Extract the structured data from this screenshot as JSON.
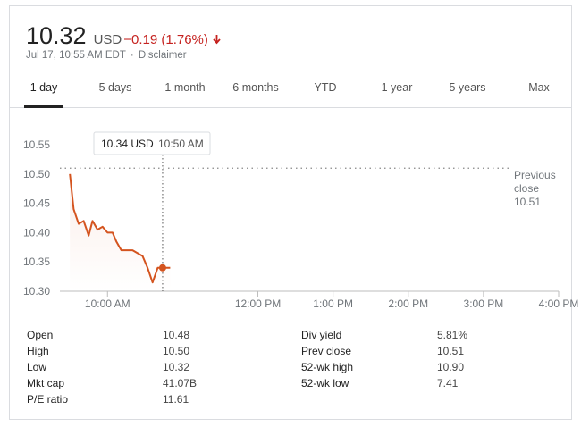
{
  "quote": {
    "price": "10.32",
    "currency": "USD",
    "change": "−0.19 (1.76%)",
    "timestamp": "Jul 17, 10:55 AM EDT",
    "separator": "·",
    "disclaimer": "Disclaimer",
    "change_color": "#c5221f"
  },
  "tabs": [
    {
      "label": "1 day",
      "active": true
    },
    {
      "label": "5 days",
      "active": false
    },
    {
      "label": "1 month",
      "active": false
    },
    {
      "label": "6 months",
      "active": false
    },
    {
      "label": "YTD",
      "active": false
    },
    {
      "label": "1 year",
      "active": false
    },
    {
      "label": "5 years",
      "active": false
    },
    {
      "label": "Max",
      "active": false
    }
  ],
  "chart_data": {
    "type": "line",
    "x_axis_ticks": [
      "10:00 AM",
      "12:00 PM",
      "1:00 PM",
      "2:00 PM",
      "3:00 PM",
      "4:00 PM"
    ],
    "y_axis_ticks": [
      "10.30",
      "10.35",
      "10.40",
      "10.45",
      "10.50",
      "10.55"
    ],
    "ylim": [
      10.3,
      10.55
    ],
    "x_range_minutes_from_open": [
      -8,
      390
    ],
    "series": [
      {
        "x_minutes_from_open": [
          0,
          3,
          7,
          11,
          15,
          18,
          22,
          26,
          30,
          34,
          37,
          41,
          45,
          50,
          54,
          58,
          62,
          66,
          70,
          74,
          77,
          80
        ],
        "values": [
          10.5,
          10.44,
          10.415,
          10.42,
          10.395,
          10.42,
          10.405,
          10.41,
          10.4,
          10.4,
          10.385,
          10.37,
          10.37,
          10.37,
          10.365,
          10.36,
          10.34,
          10.315,
          10.34,
          10.34,
          10.34,
          10.34
        ]
      }
    ],
    "previous_close": {
      "label": "Previous close",
      "value": 10.51,
      "value_text": "10.51"
    },
    "tooltip": {
      "price": "10.34 USD",
      "time": "10:50 AM",
      "x_minutes_from_open": 80,
      "value": 10.34
    },
    "line_color": "#d4541f",
    "grid": false
  },
  "stats": {
    "left": [
      {
        "label": "Open",
        "value": "10.48"
      },
      {
        "label": "High",
        "value": "10.50"
      },
      {
        "label": "Low",
        "value": "10.32"
      },
      {
        "label": "Mkt cap",
        "value": "41.07B"
      },
      {
        "label": "P/E ratio",
        "value": "11.61"
      }
    ],
    "right": [
      {
        "label": "Div yield",
        "value": "5.81%"
      },
      {
        "label": "Prev close",
        "value": "10.51"
      },
      {
        "label": "52-wk high",
        "value": "10.90"
      },
      {
        "label": "52-wk low",
        "value": "7.41"
      }
    ]
  }
}
